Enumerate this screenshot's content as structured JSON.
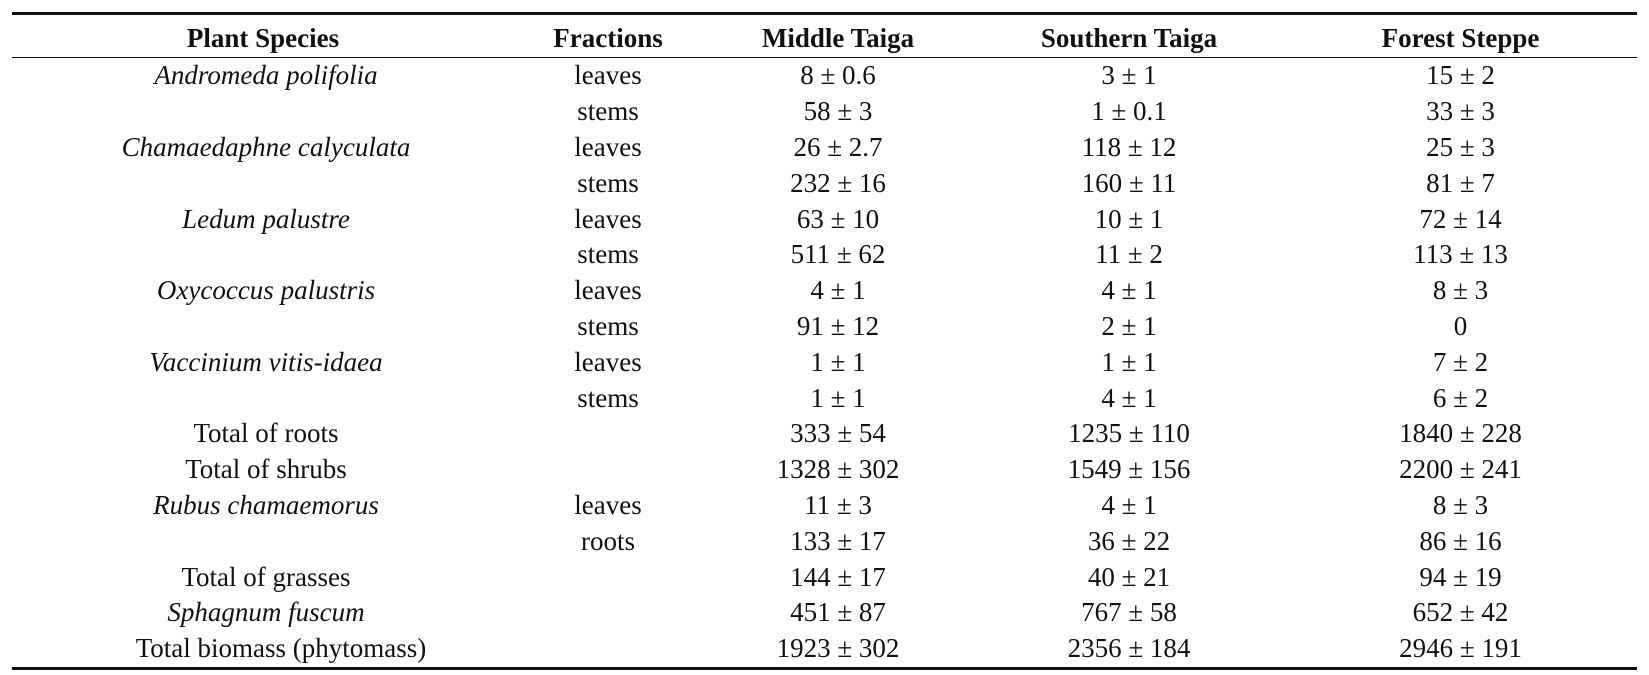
{
  "table": {
    "headers": [
      "Plant Species",
      "Fractions",
      "Middle Taiga",
      "Southern Taiga",
      "Forest Steppe"
    ],
    "rows": [
      {
        "species": "Andromeda polifolia",
        "italic": true,
        "fraction": "leaves",
        "middle": "8 ± 0.6",
        "southern": "3 ± 1",
        "steppe": "15 ± 2"
      },
      {
        "species": "",
        "italic": false,
        "fraction": "stems",
        "middle": "58 ± 3",
        "southern": "1 ± 0.1",
        "steppe": "33 ± 3"
      },
      {
        "species": "Chamaedaphne calyculata",
        "italic": true,
        "fraction": "leaves",
        "middle": "26 ± 2.7",
        "southern": "118 ± 12",
        "steppe": "25 ± 3"
      },
      {
        "species": "",
        "italic": false,
        "fraction": "stems",
        "middle": "232 ± 16",
        "southern": "160 ± 11",
        "steppe": "81 ± 7"
      },
      {
        "species": "Ledum palustre",
        "italic": true,
        "fraction": "leaves",
        "middle": "63 ± 10",
        "southern": "10 ± 1",
        "steppe": "72 ± 14"
      },
      {
        "species": "",
        "italic": false,
        "fraction": "stems",
        "middle": "511 ± 62",
        "southern": "11 ± 2",
        "steppe": "113 ± 13"
      },
      {
        "species": "Oxycoccus palustris",
        "italic": true,
        "fraction": "leaves",
        "middle": "4 ± 1",
        "southern": "4 ± 1",
        "steppe": "8 ± 3"
      },
      {
        "species": "",
        "italic": false,
        "fraction": "stems",
        "middle": "91 ± 12",
        "southern": "2 ± 1",
        "steppe": "0"
      },
      {
        "species": "Vaccinium vitis-idaea",
        "italic": true,
        "fraction": "leaves",
        "middle": "1 ± 1",
        "southern": "1 ± 1",
        "steppe": "7 ± 2"
      },
      {
        "species": "",
        "italic": false,
        "fraction": "stems",
        "middle": "1 ± 1",
        "southern": "4 ± 1",
        "steppe": "6 ± 2"
      },
      {
        "species": "Total of roots",
        "italic": false,
        "fraction": "",
        "middle": "333 ± 54",
        "southern": "1235 ± 110",
        "steppe": "1840 ± 228"
      },
      {
        "species": "Total of shrubs",
        "italic": false,
        "fraction": "",
        "middle": "1328 ± 302",
        "southern": "1549 ± 156",
        "steppe": "2200 ± 241"
      },
      {
        "species": "Rubus chamaemorus",
        "italic": true,
        "fraction": "leaves",
        "middle": "11 ± 3",
        "southern": "4 ± 1",
        "steppe": "8 ± 3"
      },
      {
        "species": "",
        "italic": false,
        "fraction": "roots",
        "middle": "133 ± 17",
        "southern": "36 ± 22",
        "steppe": "86 ± 16"
      },
      {
        "species": "Total of grasses",
        "italic": false,
        "fraction": "",
        "middle": "144 ± 17",
        "southern": "40 ± 21",
        "steppe": "94 ± 19"
      },
      {
        "species": "Sphagnum fuscum",
        "italic": true,
        "fraction": "",
        "middle": "451 ± 87",
        "southern": "767 ± 58",
        "steppe": "652 ± 42"
      },
      {
        "species": "Total biomass (phytomass)",
        "italic": false,
        "fraction": "",
        "middle": "1923 ± 302",
        "southern": "2356 ± 184",
        "steppe": "2946 ± 191",
        "indent": true
      }
    ]
  }
}
